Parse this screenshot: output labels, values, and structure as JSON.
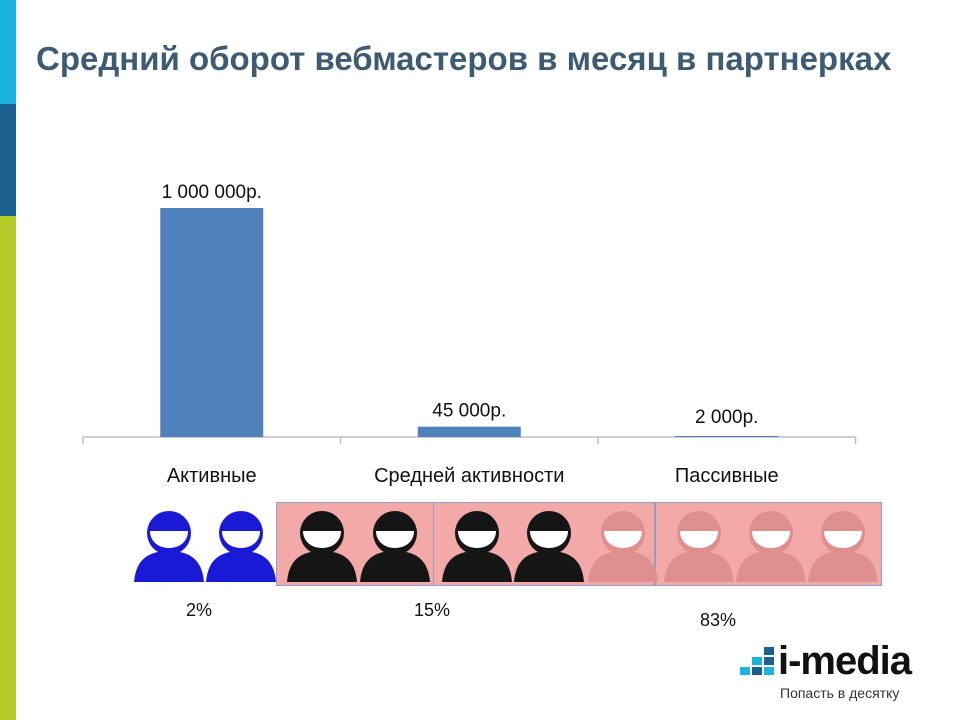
{
  "title": "Средний оборот вебмастеров в месяц в партнерках",
  "colors": {
    "bar": "#4f81bd",
    "title": "#3d5b73",
    "side_top": "#1bb4e0",
    "side_mid": "#1a5f8e",
    "side_bottom": "#b5cc2a",
    "person_blue": "#1a1ad6",
    "person_dark": "#151515",
    "person_faded": "#e08f8f",
    "pink": "#f4a9a9"
  },
  "chart_data": {
    "type": "bar",
    "categories": [
      "Активные",
      "Средней активности",
      "Пассивные"
    ],
    "values": [
      1000000,
      45000,
      2000
    ],
    "data_labels": [
      "1 000 000р.",
      "45 000р.",
      "2 000р."
    ],
    "ylim": [
      0,
      1000000
    ],
    "grid": false
  },
  "distribution": {
    "icons": [
      {
        "kind": "blue",
        "icon": "person-icon"
      },
      {
        "kind": "blue",
        "icon": "person-icon"
      },
      {
        "kind": "dark",
        "icon": "person-icon"
      },
      {
        "kind": "dark",
        "icon": "person-icon"
      },
      {
        "kind": "dark",
        "icon": "person-icon"
      },
      {
        "kind": "dark",
        "icon": "person-icon"
      },
      {
        "kind": "faded",
        "icon": "person-icon"
      },
      {
        "kind": "faded",
        "icon": "person-icon"
      },
      {
        "kind": "faded",
        "icon": "person-icon"
      },
      {
        "kind": "faded",
        "icon": "person-icon"
      }
    ],
    "percents": [
      "2%",
      "15%",
      "83%"
    ]
  },
  "logo": {
    "name": "i-media",
    "tagline": "Попасть в десятку"
  }
}
